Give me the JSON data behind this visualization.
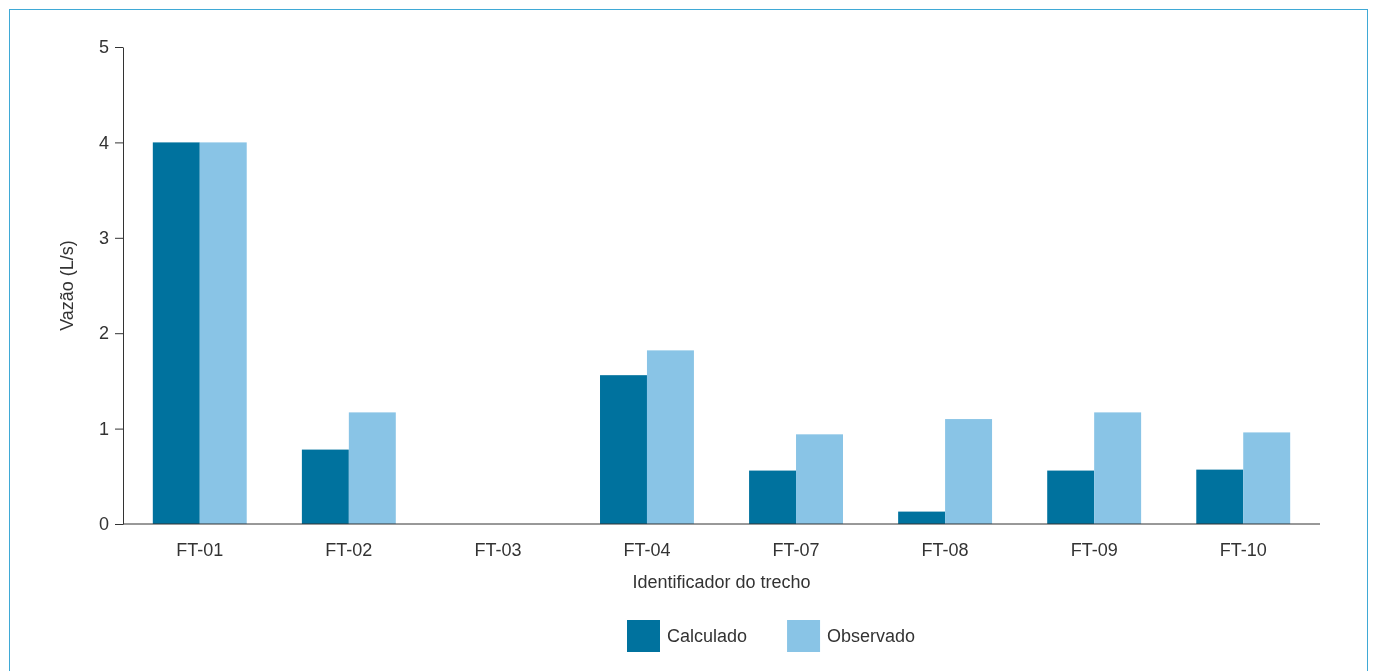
{
  "chart_data": {
    "type": "bar",
    "xlabel": "Identificador do trecho",
    "ylabel": "Vazão (L/s)",
    "categories": [
      "FT-01",
      "FT-02",
      "FT-03",
      "FT-04",
      "FT-07",
      "FT-08",
      "FT-09",
      "FT-10"
    ],
    "series": [
      {
        "name": "Calculado",
        "color": "#00729e",
        "values": [
          4.0,
          0.78,
          0,
          1.56,
          0.56,
          0.13,
          0.56,
          0.57
        ]
      },
      {
        "name": "Observado",
        "color": "#89c4e6",
        "values": [
          4.0,
          1.17,
          0,
          1.82,
          0.94,
          1.1,
          1.17,
          0.96
        ]
      }
    ],
    "ylim": [
      0,
      5
    ],
    "yticks": [
      0,
      1,
      2,
      3,
      4,
      5
    ],
    "grid": false,
    "legend": "bottom"
  }
}
